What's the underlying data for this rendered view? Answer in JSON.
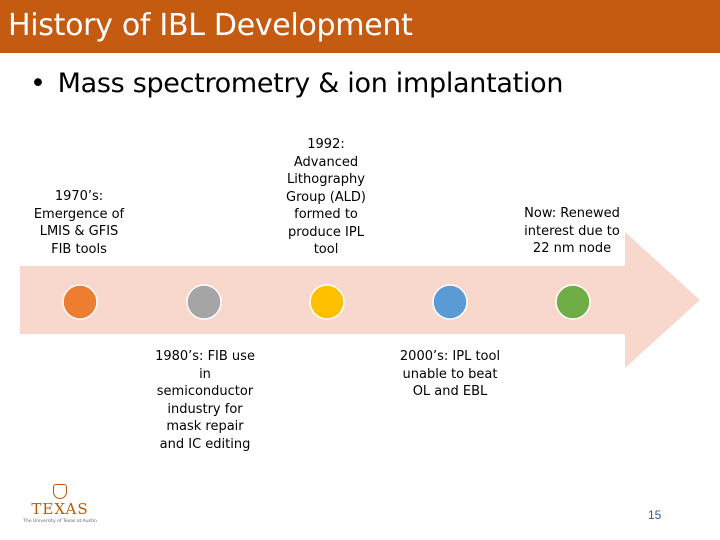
{
  "slide": {
    "title": "History of IBL Development",
    "bullet_symbol": "•",
    "bullet": "Mass spectrometry & ion implantation",
    "page_number": "15"
  },
  "colors": {
    "title_bar": "#c55a11",
    "arrow": "#f8d7cd",
    "dot_1970": "#ed7d31",
    "dot_1980": "#a5a5a5",
    "dot_1992": "#ffc000",
    "dot_2000": "#5b9bd5",
    "dot_now": "#70ad47"
  },
  "timeline": {
    "events": [
      {
        "id": "1970",
        "label": "1970’s:\nEmergence of\nLMIS & GFIS\nFIB tools",
        "color": "#ed7d31"
      },
      {
        "id": "1980",
        "label": "1980’s: FIB use\nin\nsemiconductor\nindustry for\nmask repair\nand IC editing",
        "color": "#a5a5a5"
      },
      {
        "id": "1992",
        "label": "1992:\nAdvanced\nLithography\nGroup (ALD)\nformed to\nproduce IPL\ntool",
        "color": "#ffc000"
      },
      {
        "id": "2000",
        "label": "2000’s: IPL tool\nunable to beat\nOL and EBL",
        "color": "#5b9bd5"
      },
      {
        "id": "now",
        "label": "Now: Renewed\ninterest due to\n22 nm node",
        "color": "#70ad47"
      }
    ]
  },
  "logo": {
    "name": "TEXAS",
    "subtitle": "The University of Texas at Austin"
  }
}
